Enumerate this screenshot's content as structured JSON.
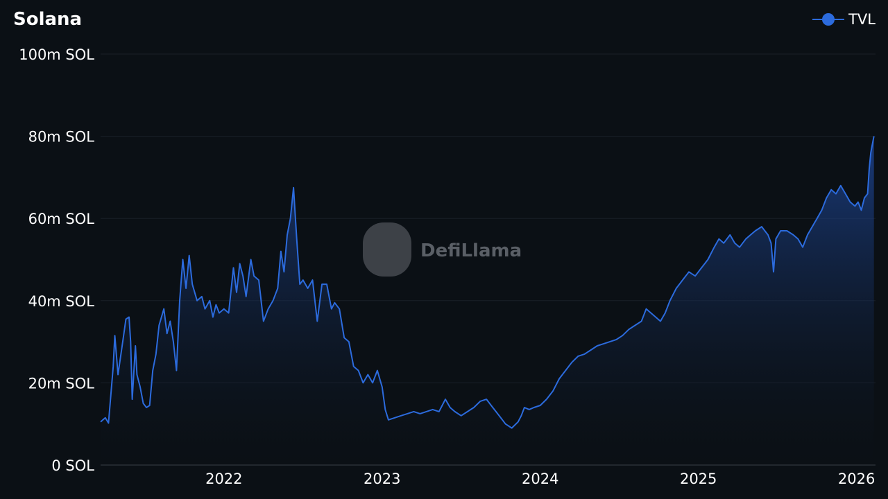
{
  "chart_data": {
    "type": "area",
    "title": "Solana",
    "legend": {
      "position": "top-right",
      "entries": [
        "TVL"
      ]
    },
    "watermark": "DefiLlama",
    "series_color": "#2c6bdd",
    "y_ticks": [
      {
        "value": 0,
        "label": "0 SOL"
      },
      {
        "value": 20,
        "label": "20m SOL"
      },
      {
        "value": 40,
        "label": "40m SOL"
      },
      {
        "value": 60,
        "label": "60m SOL"
      },
      {
        "value": 80,
        "label": "80m SOL"
      },
      {
        "value": 100,
        "label": "100m SOL"
      }
    ],
    "x_ticks": [
      {
        "value": 2022,
        "label": "2022"
      },
      {
        "value": 2023,
        "label": "2023"
      },
      {
        "value": 2024,
        "label": "2024"
      },
      {
        "value": 2025,
        "label": "2025"
      },
      {
        "value": 2026,
        "label": "2026"
      }
    ],
    "xlim": [
      2021.22,
      2026.12
    ],
    "ylim": [
      0,
      100
    ],
    "series": [
      {
        "name": "TVL",
        "points": [
          [
            2021.22,
            10.5
          ],
          [
            2021.25,
            11.5
          ],
          [
            2021.27,
            10.2
          ],
          [
            2021.3,
            24.0
          ],
          [
            2021.31,
            31.5
          ],
          [
            2021.33,
            22.0
          ],
          [
            2021.36,
            30.0
          ],
          [
            2021.38,
            35.5
          ],
          [
            2021.4,
            36.0
          ],
          [
            2021.41,
            30.0
          ],
          [
            2021.42,
            16.0
          ],
          [
            2021.44,
            29.0
          ],
          [
            2021.45,
            22.0
          ],
          [
            2021.47,
            19.0
          ],
          [
            2021.49,
            15.0
          ],
          [
            2021.51,
            14.0
          ],
          [
            2021.53,
            14.5
          ],
          [
            2021.55,
            23.0
          ],
          [
            2021.57,
            27.0
          ],
          [
            2021.59,
            34.0
          ],
          [
            2021.62,
            38.0
          ],
          [
            2021.64,
            32.0
          ],
          [
            2021.66,
            35.0
          ],
          [
            2021.68,
            30.0
          ],
          [
            2021.7,
            23.0
          ],
          [
            2021.72,
            40.0
          ],
          [
            2021.74,
            50.0
          ],
          [
            2021.76,
            43.0
          ],
          [
            2021.78,
            51.0
          ],
          [
            2021.8,
            44.0
          ],
          [
            2021.83,
            40.0
          ],
          [
            2021.86,
            41.0
          ],
          [
            2021.88,
            38.0
          ],
          [
            2021.91,
            40.0
          ],
          [
            2021.93,
            36.0
          ],
          [
            2021.95,
            39.0
          ],
          [
            2021.97,
            37.0
          ],
          [
            2022.0,
            38.0
          ],
          [
            2022.03,
            37.0
          ],
          [
            2022.06,
            48.0
          ],
          [
            2022.08,
            42.0
          ],
          [
            2022.1,
            49.0
          ],
          [
            2022.12,
            46.0
          ],
          [
            2022.14,
            41.0
          ],
          [
            2022.17,
            50.0
          ],
          [
            2022.19,
            46.0
          ],
          [
            2022.22,
            45.0
          ],
          [
            2022.25,
            35.0
          ],
          [
            2022.28,
            38.0
          ],
          [
            2022.31,
            40.0
          ],
          [
            2022.34,
            43.0
          ],
          [
            2022.36,
            52.0
          ],
          [
            2022.38,
            47.0
          ],
          [
            2022.4,
            56.0
          ],
          [
            2022.42,
            60.0
          ],
          [
            2022.44,
            67.5
          ],
          [
            2022.46,
            55.0
          ],
          [
            2022.48,
            44.0
          ],
          [
            2022.5,
            45.0
          ],
          [
            2022.53,
            43.0
          ],
          [
            2022.56,
            45.0
          ],
          [
            2022.59,
            35.0
          ],
          [
            2022.62,
            44.0
          ],
          [
            2022.65,
            44.0
          ],
          [
            2022.68,
            38.0
          ],
          [
            2022.7,
            39.5
          ],
          [
            2022.73,
            38.0
          ],
          [
            2022.76,
            31.0
          ],
          [
            2022.79,
            30.0
          ],
          [
            2022.82,
            24.0
          ],
          [
            2022.85,
            23.0
          ],
          [
            2022.88,
            20.0
          ],
          [
            2022.91,
            22.0
          ],
          [
            2022.94,
            20.0
          ],
          [
            2022.97,
            23.0
          ],
          [
            2023.0,
            19.0
          ],
          [
            2023.02,
            13.5
          ],
          [
            2023.04,
            11.0
          ],
          [
            2023.08,
            11.5
          ],
          [
            2023.12,
            12.0
          ],
          [
            2023.16,
            12.5
          ],
          [
            2023.2,
            13.0
          ],
          [
            2023.24,
            12.5
          ],
          [
            2023.28,
            13.0
          ],
          [
            2023.32,
            13.5
          ],
          [
            2023.36,
            13.0
          ],
          [
            2023.4,
            16.0
          ],
          [
            2023.43,
            14.0
          ],
          [
            2023.46,
            13.0
          ],
          [
            2023.5,
            12.0
          ],
          [
            2023.54,
            13.0
          ],
          [
            2023.58,
            14.0
          ],
          [
            2023.62,
            15.5
          ],
          [
            2023.66,
            16.0
          ],
          [
            2023.7,
            14.0
          ],
          [
            2023.74,
            12.0
          ],
          [
            2023.78,
            10.0
          ],
          [
            2023.82,
            9.0
          ],
          [
            2023.86,
            10.5
          ],
          [
            2023.88,
            12.0
          ],
          [
            2023.9,
            14.0
          ],
          [
            2023.93,
            13.5
          ],
          [
            2023.96,
            14.0
          ],
          [
            2024.0,
            14.5
          ],
          [
            2024.04,
            16.0
          ],
          [
            2024.08,
            18.0
          ],
          [
            2024.12,
            21.0
          ],
          [
            2024.16,
            23.0
          ],
          [
            2024.2,
            25.0
          ],
          [
            2024.24,
            26.5
          ],
          [
            2024.28,
            27.0
          ],
          [
            2024.32,
            28.0
          ],
          [
            2024.36,
            29.0
          ],
          [
            2024.4,
            29.5
          ],
          [
            2024.44,
            30.0
          ],
          [
            2024.48,
            30.5
          ],
          [
            2024.52,
            31.5
          ],
          [
            2024.56,
            33.0
          ],
          [
            2024.6,
            34.0
          ],
          [
            2024.64,
            35.0
          ],
          [
            2024.67,
            38.0
          ],
          [
            2024.7,
            37.0
          ],
          [
            2024.73,
            36.0
          ],
          [
            2024.76,
            35.0
          ],
          [
            2024.79,
            37.0
          ],
          [
            2024.82,
            40.0
          ],
          [
            2024.86,
            43.0
          ],
          [
            2024.9,
            45.0
          ],
          [
            2024.94,
            47.0
          ],
          [
            2024.98,
            46.0
          ],
          [
            2025.02,
            48.0
          ],
          [
            2025.06,
            50.0
          ],
          [
            2025.1,
            53.0
          ],
          [
            2025.13,
            55.0
          ],
          [
            2025.16,
            54.0
          ],
          [
            2025.2,
            56.0
          ],
          [
            2025.23,
            54.0
          ],
          [
            2025.26,
            53.0
          ],
          [
            2025.3,
            55.0
          ],
          [
            2025.33,
            56.0
          ],
          [
            2025.36,
            57.0
          ],
          [
            2025.4,
            58.0
          ],
          [
            2025.44,
            56.0
          ],
          [
            2025.46,
            54.0
          ],
          [
            2025.475,
            47.0
          ],
          [
            2025.49,
            55.0
          ],
          [
            2025.52,
            57.0
          ],
          [
            2025.56,
            57.0
          ],
          [
            2025.6,
            56.0
          ],
          [
            2025.63,
            55.0
          ],
          [
            2025.66,
            53.0
          ],
          [
            2025.69,
            56.0
          ],
          [
            2025.72,
            58.0
          ],
          [
            2025.75,
            60.0
          ],
          [
            2025.78,
            62.0
          ],
          [
            2025.81,
            65.0
          ],
          [
            2025.84,
            67.0
          ],
          [
            2025.87,
            66.0
          ],
          [
            2025.9,
            68.0
          ],
          [
            2025.93,
            66.0
          ],
          [
            2025.96,
            64.0
          ],
          [
            2025.99,
            63.0
          ],
          [
            2026.01,
            64.0
          ],
          [
            2026.03,
            62.0
          ],
          [
            2026.05,
            65.0
          ],
          [
            2026.07,
            66.0
          ],
          [
            2026.08,
            72.0
          ],
          [
            2026.09,
            76.0
          ],
          [
            2026.1,
            78.0
          ],
          [
            2026.11,
            80.0
          ]
        ]
      }
    ]
  }
}
